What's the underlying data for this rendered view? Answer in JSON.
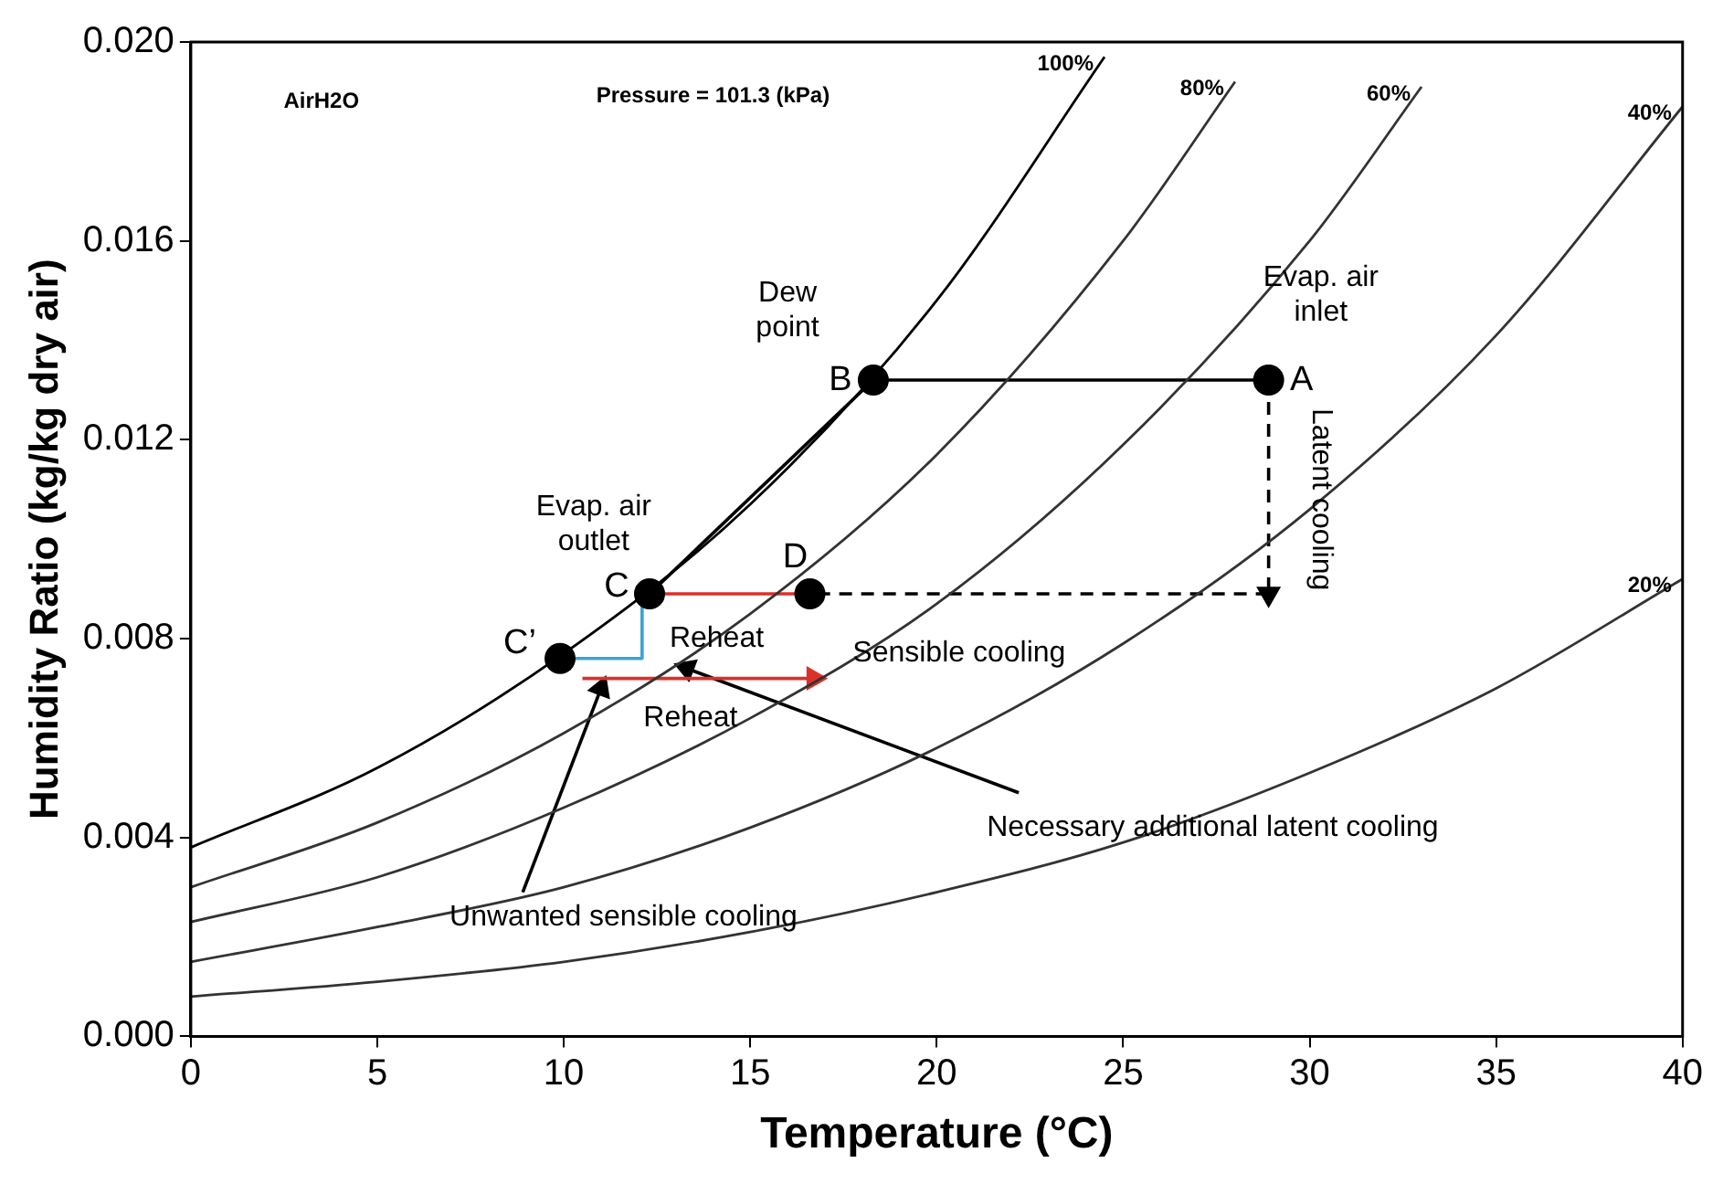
{
  "chart_data": {
    "type": "line",
    "xlabel": "Temperature (°C)",
    "ylabel": "Humidity Ratio (kg/kg dry air)",
    "xlim": [
      0,
      40
    ],
    "xticks": [
      0,
      5,
      10,
      15,
      20,
      25,
      30,
      35,
      40
    ],
    "ylim": [
      0,
      0.02
    ],
    "yticks": [
      {
        "value": 0,
        "label": "0.000"
      },
      {
        "value": 0.004,
        "label": "0.004"
      },
      {
        "value": 0.008,
        "label": "0.008"
      },
      {
        "value": 0.012,
        "label": "0.012"
      },
      {
        "value": 0.016,
        "label": "0.016"
      },
      {
        "value": 0.02,
        "label": "0.020"
      }
    ],
    "grid": false,
    "legend": false,
    "series": [
      {
        "name": "100%",
        "color": "#000000",
        "x": [
          0,
          5,
          10,
          15,
          20,
          24.5
        ],
        "values": [
          0.0038,
          0.0054,
          0.0077,
          0.0107,
          0.0148,
          0.0197
        ]
      },
      {
        "name": "80%",
        "color": "#333333",
        "x": [
          0,
          5,
          10,
          15,
          20,
          25,
          28
        ],
        "values": [
          0.003,
          0.0043,
          0.0061,
          0.0085,
          0.0117,
          0.016,
          0.0192
        ]
      },
      {
        "name": "60%",
        "color": "#333333",
        "x": [
          0,
          5,
          10,
          15,
          20,
          25,
          30,
          33
        ],
        "values": [
          0.0023,
          0.0032,
          0.0046,
          0.0064,
          0.0087,
          0.0119,
          0.016,
          0.0191
        ]
      },
      {
        "name": "40%",
        "color": "#333333",
        "x": [
          0,
          5,
          10,
          15,
          20,
          25,
          30,
          35,
          40
        ],
        "values": [
          0.0015,
          0.0022,
          0.003,
          0.0042,
          0.0058,
          0.0079,
          0.0106,
          0.0141,
          0.0187
        ]
      },
      {
        "name": "20%",
        "color": "#333333",
        "x": [
          0,
          5,
          10,
          15,
          20,
          25,
          30,
          35,
          40
        ],
        "values": [
          0.0008,
          0.0011,
          0.0015,
          0.0021,
          0.0029,
          0.0039,
          0.0053,
          0.007,
          0.0092
        ]
      },
      {
        "color": "#000000",
        "x": [
          28.9,
          18.3
        ],
        "values": [
          0.0132,
          0.0132
        ]
      },
      {
        "color": "#000000",
        "x": [
          18.3,
          12.3
        ],
        "values": [
          0.0132,
          0.0089
        ]
      },
      {
        "color": "#000000",
        "line_style": "dashed",
        "x": [
          28.9,
          28.9
        ],
        "values": [
          0.0132,
          0.0089
        ]
      },
      {
        "color": "#000000",
        "line_style": "dashed",
        "x": [
          28.9,
          16.6
        ],
        "values": [
          0.0089,
          0.0089
        ]
      },
      {
        "color": "#d9312b",
        "x": [
          12.3,
          16.6
        ],
        "values": [
          0.0089,
          0.0089
        ]
      },
      {
        "color": "#3ba3d0",
        "x": [
          12.1,
          12.1,
          10
        ],
        "values": [
          0.0088,
          0.0076,
          0.0076
        ]
      },
      {
        "color": "#d9312b",
        "x": [
          10.5,
          16.7
        ],
        "values": [
          0.0072,
          0.0072
        ]
      },
      {
        "color": "#000000",
        "x": [
          22.2,
          13.3
        ],
        "values": [
          0.0049,
          0.0074
        ]
      },
      {
        "color": "#000000",
        "x": [
          8.9,
          11
        ],
        "values": [
          0.0029,
          0.007
        ]
      },
      {
        "type": "scatter",
        "marker": "circle",
        "color": "#000000",
        "x": [
          28.9,
          18.3,
          12.3,
          16.6,
          9.9
        ],
        "values": [
          0.0132,
          0.0132,
          0.0089,
          0.0089,
          0.0076
        ]
      }
    ],
    "annotations": [
      "AirH2O",
      "Pressure = 101.3 (kPa)",
      "Dew\npoint",
      "Evap. air\ninlet",
      "Evap. air\noutlet",
      "Reheat",
      "Reheat",
      "Sensible cooling",
      "Latent cooling",
      "Necessary additional latent cooling",
      "Unwanted sensible cooling",
      {
        "text": "A",
        "x": 28.9,
        "y": 0.0132
      },
      {
        "text": "B",
        "x": 18.3,
        "y": 0.0132
      },
      {
        "text": "C",
        "x": 12.3,
        "y": 0.0089
      },
      {
        "text": "D",
        "x": 16.6,
        "y": 0.0089
      },
      {
        "text": "C’",
        "x": 9.9,
        "y": 0.0076
      }
    ]
  }
}
